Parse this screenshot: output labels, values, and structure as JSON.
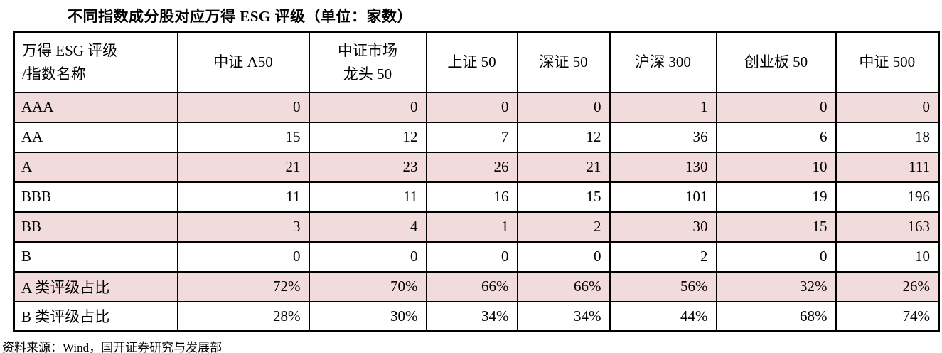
{
  "title": "不同指数成分股对应万得 ESG 评级（单位：家数）",
  "accent_colors": {
    "row_highlight": "#f2dcdb",
    "border": "#000000"
  },
  "table": {
    "corner_header": "万得 ESG 评级\n/指数名称",
    "columns": [
      "中证 A50",
      "中证市场\n龙头 50",
      "上证 50",
      "深证 50",
      "沪深 300",
      "创业板 50",
      "中证 500"
    ],
    "rows": [
      {
        "label": "AAA",
        "values": [
          "0",
          "0",
          "0",
          "0",
          "1",
          "0",
          "0"
        ],
        "highlight": true,
        "bold": [
          false,
          false,
          false,
          false,
          false,
          false,
          false
        ]
      },
      {
        "label": "AA",
        "values": [
          "15",
          "12",
          "7",
          "12",
          "36",
          "6",
          "18"
        ],
        "highlight": false,
        "bold": [
          false,
          false,
          false,
          false,
          false,
          false,
          false
        ]
      },
      {
        "label": "A",
        "values": [
          "21",
          "23",
          "26",
          "21",
          "130",
          "10",
          "111"
        ],
        "highlight": true,
        "bold": [
          false,
          false,
          false,
          false,
          false,
          false,
          false
        ]
      },
      {
        "label": "BBB",
        "values": [
          "11",
          "11",
          "16",
          "15",
          "101",
          "19",
          "196"
        ],
        "highlight": false,
        "bold": [
          false,
          false,
          false,
          false,
          false,
          false,
          false
        ]
      },
      {
        "label": "BB",
        "values": [
          "3",
          "4",
          "1",
          "2",
          "30",
          "15",
          "163"
        ],
        "highlight": true,
        "bold": [
          false,
          false,
          false,
          false,
          false,
          false,
          false
        ]
      },
      {
        "label": "B",
        "values": [
          "0",
          "0",
          "0",
          "0",
          "2",
          "0",
          "10"
        ],
        "highlight": false,
        "bold": [
          false,
          false,
          false,
          false,
          false,
          false,
          false
        ]
      },
      {
        "label": "A 类评级占比",
        "values": [
          "72%",
          "70%",
          "66%",
          "66%",
          "56%",
          "32%",
          "26%"
        ],
        "highlight": true,
        "bold": [
          true,
          true,
          false,
          false,
          false,
          false,
          false
        ]
      },
      {
        "label": "B 类评级占比",
        "values": [
          "28%",
          "30%",
          "34%",
          "34%",
          "44%",
          "68%",
          "74%"
        ],
        "highlight": false,
        "bold": [
          false,
          false,
          false,
          false,
          false,
          false,
          false
        ]
      }
    ]
  },
  "source": "资料来源：Wind，国开证券研究与发展部",
  "chart_data": {
    "type": "table",
    "title": "不同指数成分股对应万得 ESG 评级（单位：家数）",
    "categories": [
      "中证 A50",
      "中证市场龙头 50",
      "上证 50",
      "深证 50",
      "沪深 300",
      "创业板 50",
      "中证 500"
    ],
    "series": [
      {
        "name": "AAA",
        "values": [
          0,
          0,
          0,
          0,
          1,
          0,
          0
        ]
      },
      {
        "name": "AA",
        "values": [
          15,
          12,
          7,
          12,
          36,
          6,
          18
        ]
      },
      {
        "name": "A",
        "values": [
          21,
          23,
          26,
          21,
          130,
          10,
          111
        ]
      },
      {
        "name": "BBB",
        "values": [
          11,
          11,
          16,
          15,
          101,
          19,
          196
        ]
      },
      {
        "name": "BB",
        "values": [
          3,
          4,
          1,
          2,
          30,
          15,
          163
        ]
      },
      {
        "name": "B",
        "values": [
          0,
          0,
          0,
          0,
          2,
          0,
          10
        ]
      },
      {
        "name": "A 类评级占比",
        "values": [
          "72%",
          "70%",
          "66%",
          "66%",
          "56%",
          "32%",
          "26%"
        ]
      },
      {
        "name": "B 类评级占比",
        "values": [
          "28%",
          "30%",
          "34%",
          "34%",
          "44%",
          "68%",
          "74%"
        ]
      }
    ]
  }
}
